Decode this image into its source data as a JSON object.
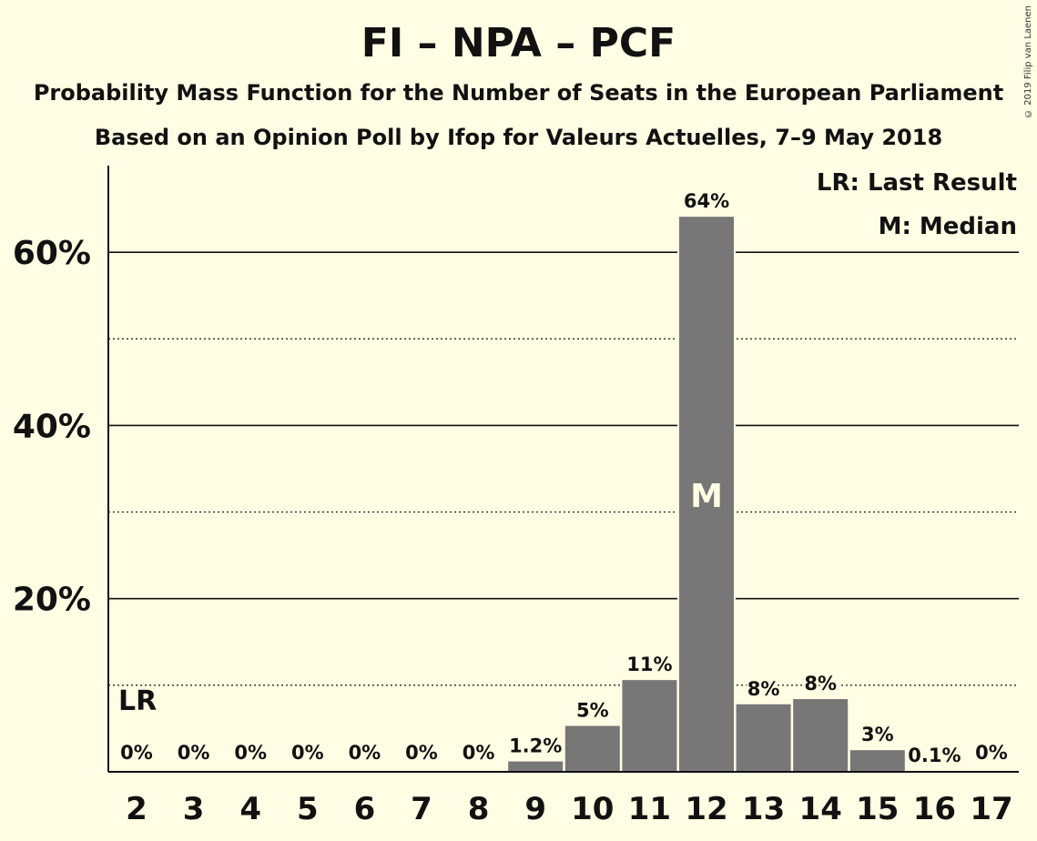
{
  "title": "FI – NPA – PCF",
  "subtitle1": "Probability Mass Function for the Number of Seats in the European Parliament",
  "subtitle2": "Based on an Opinion Poll by Ifop for Valeurs Actuelles, 7–9 May 2018",
  "copyright": "© 2019 Filip van Laenen",
  "legend": {
    "last_result": "LR: Last Result",
    "median": "M: Median"
  },
  "colors": {
    "background": "#fffde3",
    "bar": "#777777",
    "text": "#111111"
  },
  "chart_data": {
    "type": "bar",
    "categories": [
      "2",
      "3",
      "4",
      "5",
      "6",
      "7",
      "8",
      "9",
      "10",
      "11",
      "12",
      "13",
      "14",
      "15",
      "16",
      "17"
    ],
    "values": [
      0,
      0,
      0,
      0,
      0,
      0,
      0,
      1.2,
      5.3,
      10.6,
      64.1,
      7.8,
      8.4,
      2.5,
      0.1,
      0
    ],
    "labels": [
      "0%",
      "0%",
      "0%",
      "0%",
      "0%",
      "0%",
      "0%",
      "1.2%",
      "5%",
      "11%",
      "64%",
      "8%",
      "8%",
      "3%",
      "0.1%",
      "0%"
    ],
    "ylim": [
      0,
      70
    ],
    "yticks": [
      20,
      40,
      60
    ],
    "ytick_labels": [
      "20%",
      "40%",
      "60%"
    ],
    "minor_gridlines": [
      10,
      30,
      50
    ],
    "last_result": {
      "category": "2",
      "marker": "LR"
    },
    "median": {
      "category": "12",
      "marker": "M"
    }
  }
}
